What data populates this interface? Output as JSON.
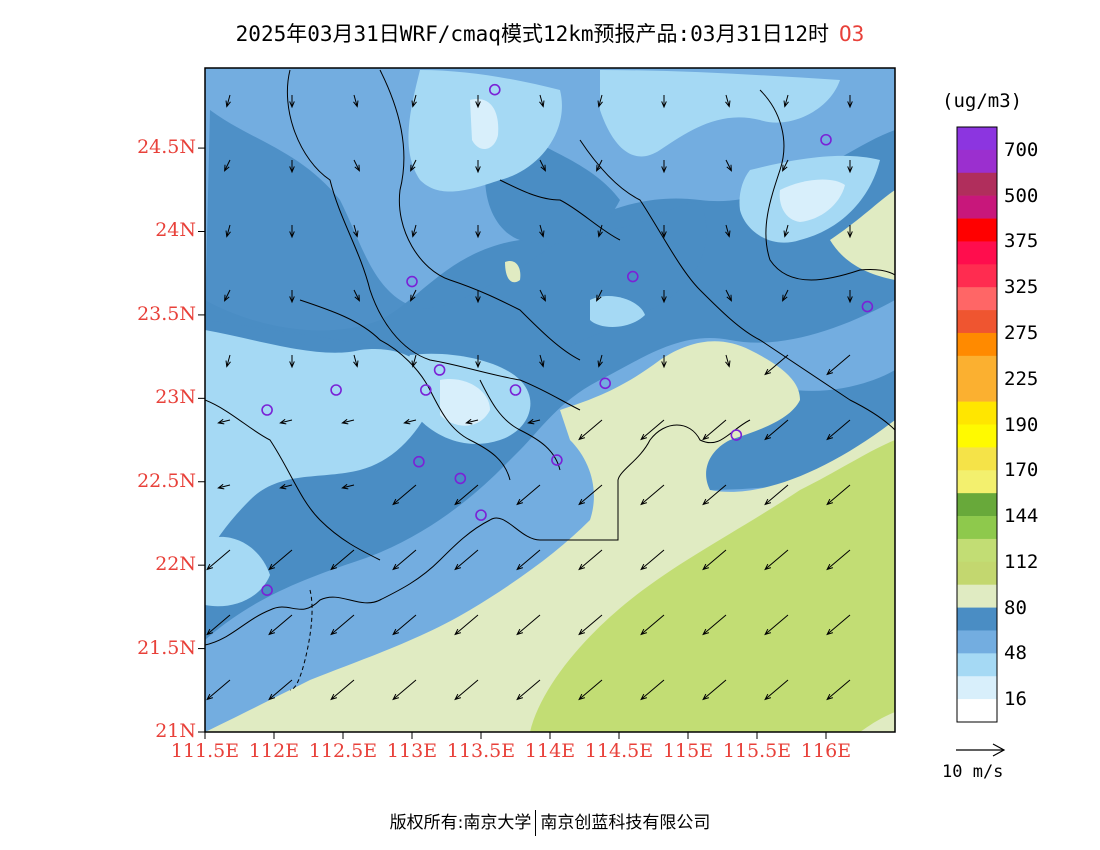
{
  "title": {
    "text": "2025年03月31日WRF/cmaq模式12km预报产品:03月31日12时",
    "pollutant": "O3"
  },
  "axes": {
    "lat_labels": [
      "24.5N",
      "24N",
      "23.5N",
      "23N",
      "22.5N",
      "22N",
      "21.5N",
      "21N"
    ],
    "lat_values": [
      24.5,
      24.0,
      23.5,
      23.0,
      22.5,
      22.0,
      21.5,
      21.0
    ],
    "lon_labels": [
      "111.5E",
      "112E",
      "112.5E",
      "113E",
      "113.5E",
      "114E",
      "114.5E",
      "115E",
      "115.5E",
      "116E"
    ],
    "lon_values": [
      111.5,
      112.0,
      112.5,
      113.0,
      113.5,
      114.0,
      114.5,
      115.0,
      115.5,
      116.0
    ],
    "lon_range": [
      111.5,
      116.5
    ],
    "lat_range": [
      21.0,
      24.98
    ]
  },
  "colorbar": {
    "unit": "(ug/m3)",
    "labels": [
      "700",
      "500",
      "375",
      "325",
      "275",
      "225",
      "190",
      "170",
      "144",
      "112",
      "80",
      "48",
      "16"
    ],
    "colors_top_to_bottom": [
      "#8c35e0",
      "#9b2fcf",
      "#b02e5c",
      "#c8177b",
      "#ff0000",
      "#ff0d4d",
      "#ff2c50",
      "#ff6666",
      "#ef5530",
      "#ff8a00",
      "#fbb030",
      "#fbb030",
      "#ffe600",
      "#fffa00",
      "#f5e348",
      "#f3f06e",
      "#68a93a",
      "#8ec94c",
      "#c2dd74",
      "#c3d76f",
      "#e0ebc2",
      "#4a8dc4",
      "#73ade0",
      "#a5d9f4",
      "#d8effb",
      "#ffffff"
    ]
  },
  "wind_ref": {
    "label": "10 m/s"
  },
  "footer": {
    "left": "版权所有:南京大学",
    "right": "南京创蓝科技有限公司"
  },
  "stations": [
    [
      113.6,
      24.85
    ],
    [
      116.0,
      24.55
    ],
    [
      113.0,
      23.7
    ],
    [
      114.6,
      23.73
    ],
    [
      116.3,
      23.55
    ],
    [
      113.2,
      23.17
    ],
    [
      112.45,
      23.05
    ],
    [
      113.1,
      23.05
    ],
    [
      113.75,
      23.05
    ],
    [
      114.4,
      23.09
    ],
    [
      111.95,
      22.93
    ],
    [
      113.05,
      22.62
    ],
    [
      113.35,
      22.52
    ],
    [
      114.05,
      22.63
    ],
    [
      115.35,
      22.78
    ],
    [
      113.5,
      22.3
    ],
    [
      111.95,
      21.85
    ]
  ],
  "chart_data": {
    "type": "heatmap",
    "variable": "O3",
    "title": "2025年03月31日WRF/cmaq模式12km预报产品:03月31日12时",
    "unit": "(ug/m3)",
    "xlim": [
      111.5,
      116.5
    ],
    "ylim": [
      21.0,
      24.98
    ],
    "levels": [
      16,
      48,
      80,
      112,
      144,
      170,
      190,
      225,
      275,
      325,
      375,
      500,
      700
    ],
    "wind_reference_ms": 10
  }
}
